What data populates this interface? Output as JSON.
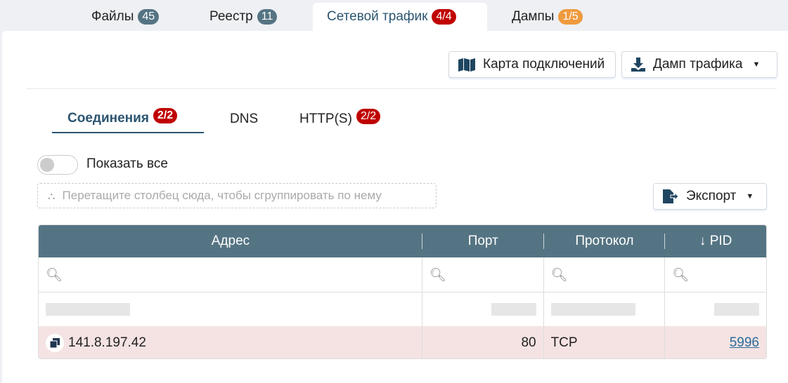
{
  "tabs": [
    {
      "label": "Файлы",
      "badge": "45",
      "badge_color": "#557483"
    },
    {
      "label": "Реестр",
      "badge": "11",
      "badge_color": "#557483"
    },
    {
      "label": "Сетевой трафик",
      "badge": "4/4",
      "badge_color": "#c00000",
      "active": true
    },
    {
      "label": "Дампы",
      "badge": "1/5",
      "badge_color": "#ef9a3e"
    }
  ],
  "toolbar": {
    "map_label": "Карта подключений",
    "dump_label": "Дамп трафика"
  },
  "subtabs": [
    {
      "label": "Соединения",
      "badge": "2/2",
      "active": true
    },
    {
      "label": "DNS"
    },
    {
      "label": "HTTP(S)",
      "badge": "2/2"
    }
  ],
  "show_all": {
    "label": "Показать все",
    "on": false
  },
  "group_placeholder": "Перетащите столбец сюда, чтобы сгруппировать по нему",
  "export_label": "Экспорт",
  "table": {
    "columns": [
      "Адрес",
      "Порт",
      "Протокол",
      "↓ PID"
    ],
    "rows": [
      {
        "address": "141.8.197.42",
        "port": "80",
        "protocol": "TCP",
        "pid": "5996"
      }
    ]
  }
}
